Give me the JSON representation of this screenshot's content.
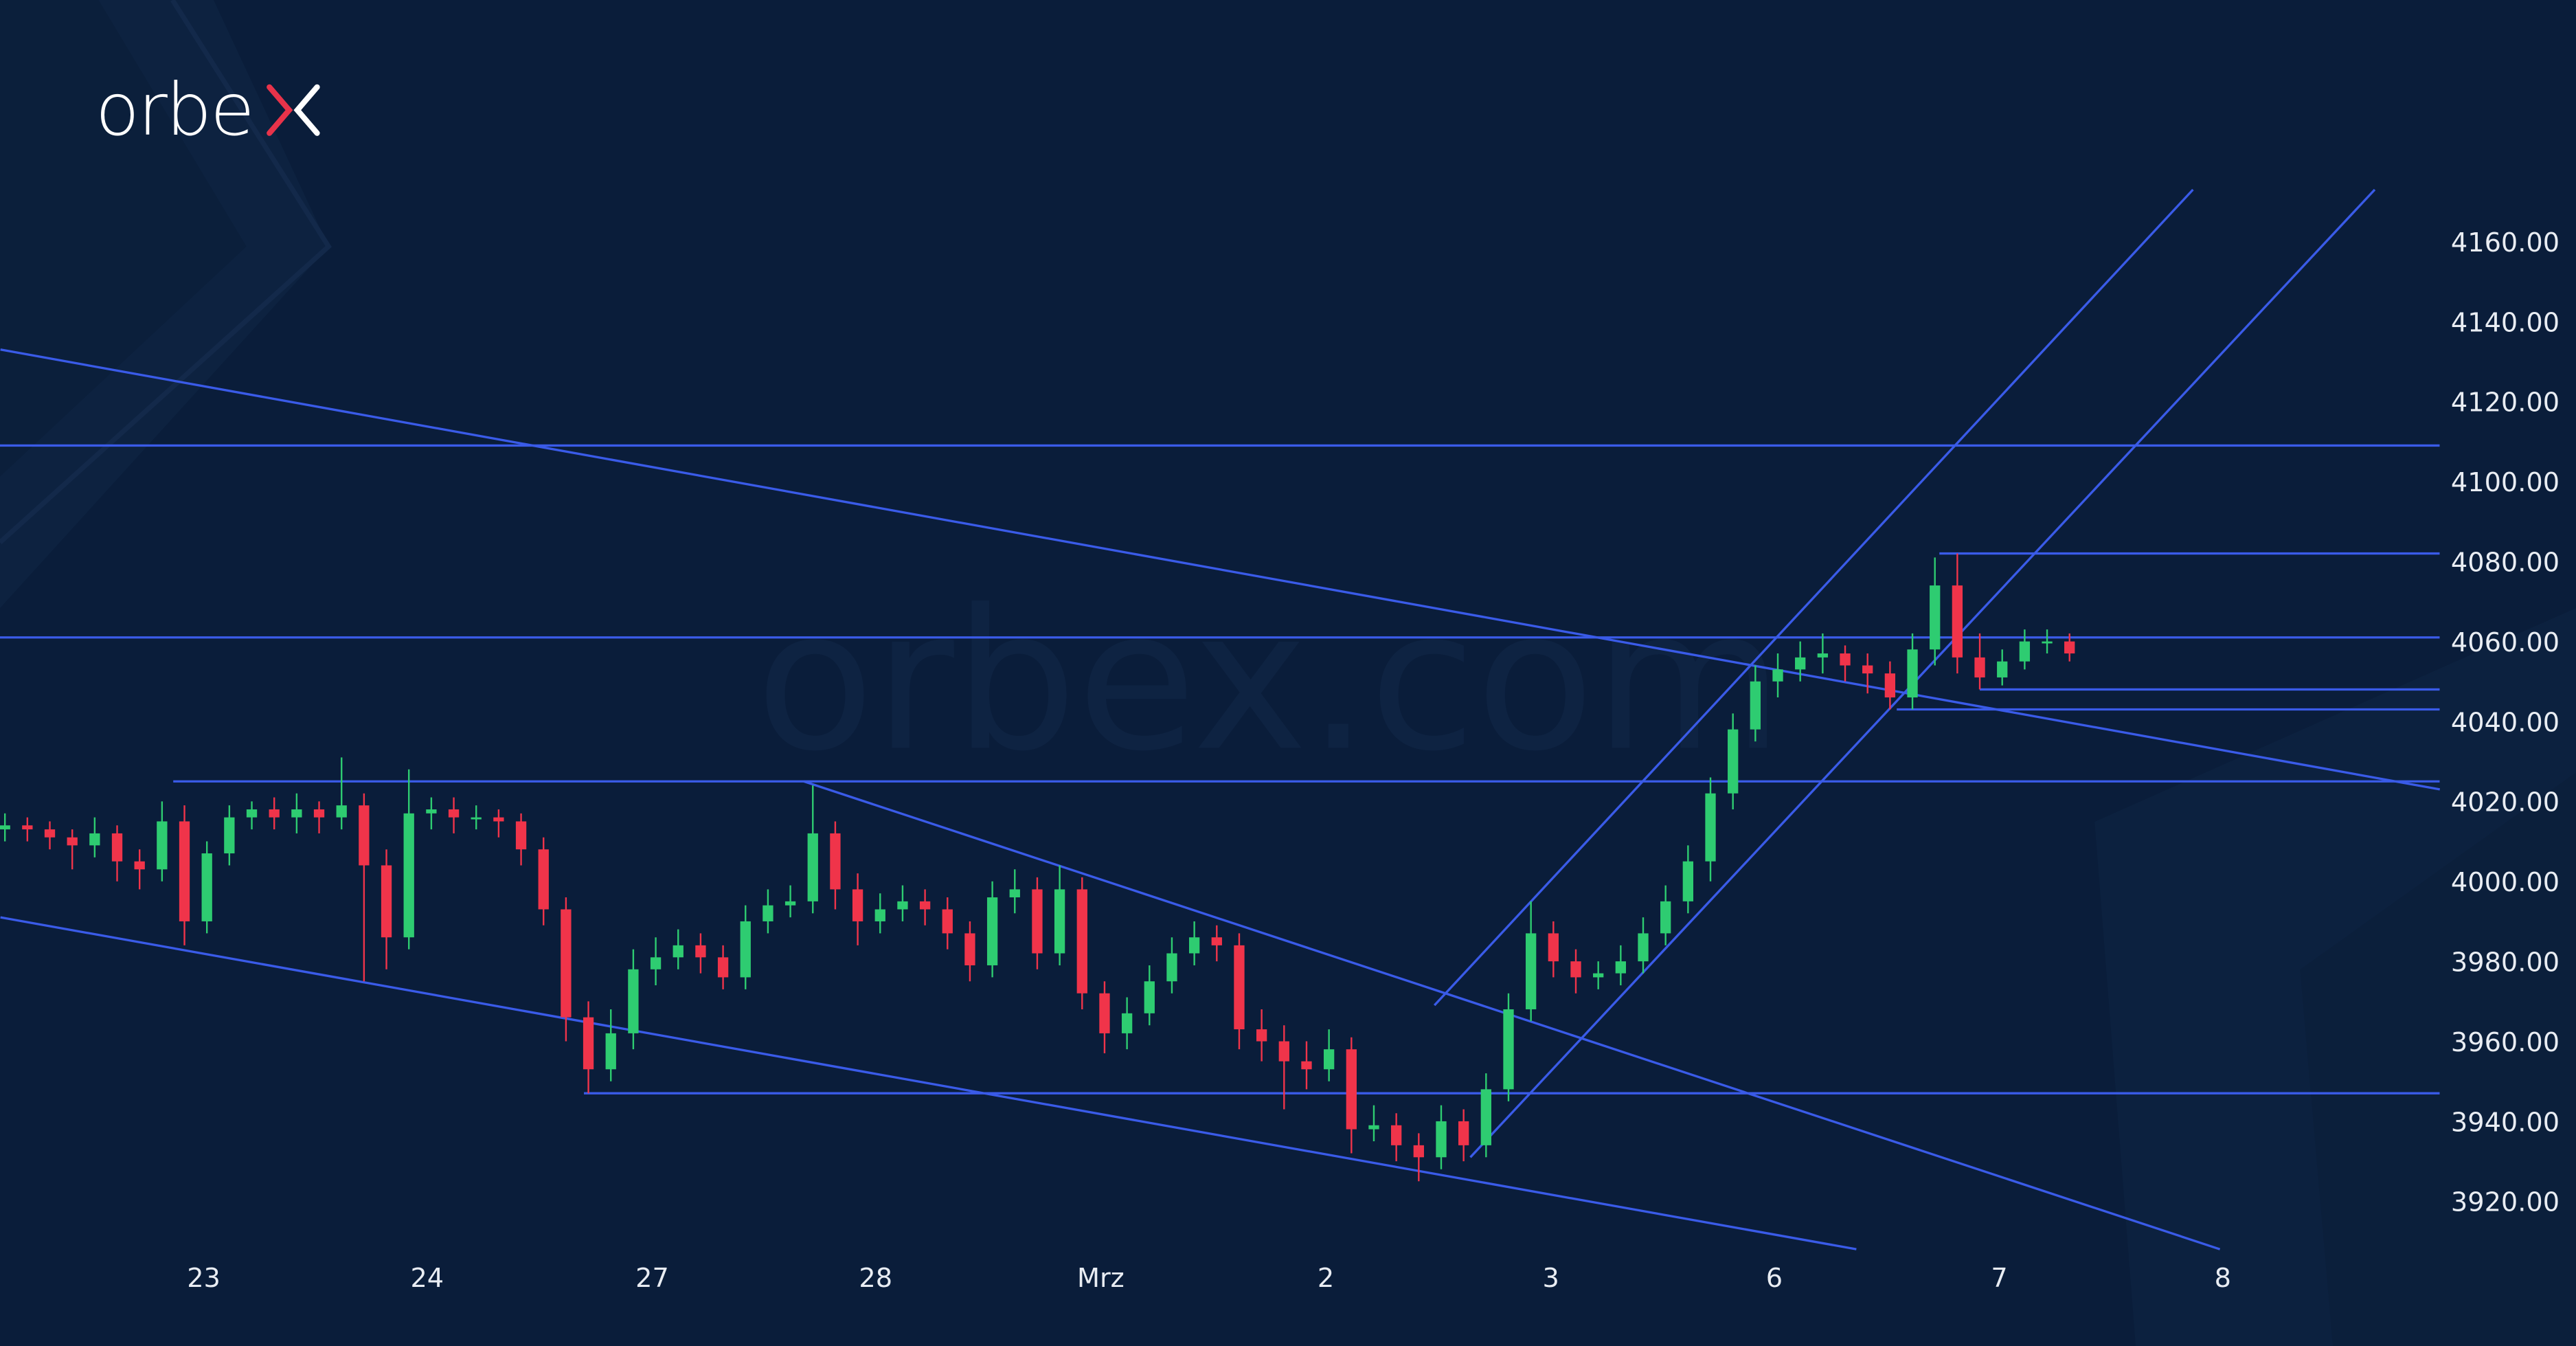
{
  "brand": {
    "logo_text": "orbex",
    "watermark_text": "orbex.com"
  },
  "colors": {
    "background": "#0a1d3a",
    "bull": "#2ecc71",
    "bear": "#f0344a",
    "drawing": "#3a5be8",
    "axis_text": "#e9edf3",
    "logo_accent": "#e8334a"
  },
  "chart_data": {
    "type": "candlestick",
    "title": "",
    "xlabel": "",
    "ylabel": "",
    "ylim": [
      3910,
      4175
    ],
    "grid": false,
    "y_ticks": [
      "4160.00",
      "4140.00",
      "4120.00",
      "4100.00",
      "4080.00",
      "4060.00",
      "4040.00",
      "4020.00",
      "4000.00",
      "3980.00",
      "3960.00",
      "3940.00",
      "3920.00"
    ],
    "x_ticks": [
      "23",
      "24",
      "27",
      "28",
      "Mrz",
      "2",
      "3",
      "6",
      "7",
      "8"
    ],
    "ohlc": [
      [
        4013,
        4017,
        4010,
        4014
      ],
      [
        4014,
        4016,
        4010,
        4013
      ],
      [
        4013,
        4015,
        4008,
        4011
      ],
      [
        4011,
        4013,
        4003,
        4009
      ],
      [
        4009,
        4016,
        4006,
        4012
      ],
      [
        4012,
        4014,
        4000,
        4005
      ],
      [
        4005,
        4008,
        3998,
        4003
      ],
      [
        4003,
        4020,
        4000,
        4015
      ],
      [
        4015,
        4019,
        3984,
        3990
      ],
      [
        3990,
        4010,
        3987,
        4007
      ],
      [
        4007,
        4019,
        4004,
        4016
      ],
      [
        4016,
        4020,
        4013,
        4018
      ],
      [
        4018,
        4021,
        4013,
        4016
      ],
      [
        4016,
        4022,
        4012,
        4018
      ],
      [
        4018,
        4020,
        4012,
        4016
      ],
      [
        4016,
        4031,
        4013,
        4019
      ],
      [
        4019,
        4022,
        3975,
        4004
      ],
      [
        4004,
        4008,
        3978,
        3986
      ],
      [
        3986,
        4028,
        3983,
        4017
      ],
      [
        4017,
        4021,
        4013,
        4018
      ],
      [
        4018,
        4021,
        4012,
        4016
      ],
      [
        4016,
        4019,
        4013,
        4016
      ],
      [
        4016,
        4018,
        4011,
        4015
      ],
      [
        4015,
        4017,
        4004,
        4008
      ],
      [
        4008,
        4011,
        3989,
        3993
      ],
      [
        3993,
        3996,
        3960,
        3966
      ],
      [
        3966,
        3970,
        3947,
        3953
      ],
      [
        3953,
        3968,
        3950,
        3962
      ],
      [
        3962,
        3983,
        3958,
        3978
      ],
      [
        3978,
        3986,
        3974,
        3981
      ],
      [
        3981,
        3988,
        3978,
        3984
      ],
      [
        3984,
        3987,
        3977,
        3981
      ],
      [
        3981,
        3984,
        3973,
        3976
      ],
      [
        3976,
        3994,
        3973,
        3990
      ],
      [
        3990,
        3998,
        3987,
        3994
      ],
      [
        3994,
        3999,
        3991,
        3995
      ],
      [
        3995,
        4024,
        3992,
        4012
      ],
      [
        4012,
        4015,
        3993,
        3998
      ],
      [
        3998,
        4002,
        3984,
        3990
      ],
      [
        3990,
        3997,
        3987,
        3993
      ],
      [
        3993,
        3999,
        3990,
        3995
      ],
      [
        3995,
        3998,
        3989,
        3993
      ],
      [
        3993,
        3996,
        3983,
        3987
      ],
      [
        3987,
        3990,
        3975,
        3979
      ],
      [
        3979,
        4000,
        3976,
        3996
      ],
      [
        3996,
        4003,
        3992,
        3998
      ],
      [
        3998,
        4001,
        3978,
        3982
      ],
      [
        3982,
        4004,
        3979,
        3998
      ],
      [
        3998,
        4001,
        3968,
        3972
      ],
      [
        3972,
        3975,
        3957,
        3962
      ],
      [
        3962,
        3971,
        3958,
        3967
      ],
      [
        3967,
        3979,
        3964,
        3975
      ],
      [
        3975,
        3986,
        3972,
        3982
      ],
      [
        3982,
        3990,
        3979,
        3986
      ],
      [
        3986,
        3989,
        3980,
        3984
      ],
      [
        3984,
        3987,
        3958,
        3963
      ],
      [
        3963,
        3968,
        3955,
        3960
      ],
      [
        3960,
        3964,
        3943,
        3955
      ],
      [
        3955,
        3960,
        3948,
        3953
      ],
      [
        3953,
        3963,
        3950,
        3958
      ],
      [
        3958,
        3961,
        3932,
        3938
      ],
      [
        3938,
        3944,
        3935,
        3939
      ],
      [
        3939,
        3942,
        3930,
        3934
      ],
      [
        3934,
        3937,
        3925,
        3931
      ],
      [
        3931,
        3944,
        3928,
        3940
      ],
      [
        3940,
        3943,
        3930,
        3934
      ],
      [
        3934,
        3952,
        3931,
        3948
      ],
      [
        3948,
        3972,
        3945,
        3968
      ],
      [
        3968,
        3995,
        3965,
        3987
      ],
      [
        3987,
        3990,
        3976,
        3980
      ],
      [
        3980,
        3983,
        3972,
        3976
      ],
      [
        3976,
        3980,
        3973,
        3977
      ],
      [
        3977,
        3984,
        3974,
        3980
      ],
      [
        3980,
        3991,
        3977,
        3987
      ],
      [
        3987,
        3999,
        3984,
        3995
      ],
      [
        3995,
        4009,
        3992,
        4005
      ],
      [
        4005,
        4026,
        4000,
        4022
      ],
      [
        4022,
        4042,
        4018,
        4038
      ],
      [
        4038,
        4054,
        4035,
        4050
      ],
      [
        4050,
        4057,
        4046,
        4053
      ],
      [
        4053,
        4060,
        4050,
        4056
      ],
      [
        4056,
        4062,
        4052,
        4057
      ],
      [
        4057,
        4059,
        4050,
        4054
      ],
      [
        4054,
        4057,
        4047,
        4052
      ],
      [
        4052,
        4055,
        4043,
        4046
      ],
      [
        4046,
        4062,
        4043,
        4058
      ],
      [
        4058,
        4081,
        4054,
        4074
      ],
      [
        4074,
        4082,
        4052,
        4056
      ],
      [
        4056,
        4062,
        4048,
        4051
      ],
      [
        4051,
        4058,
        4049,
        4055
      ],
      [
        4055,
        4063,
        4053,
        4060
      ],
      [
        4060,
        4063,
        4057,
        4060
      ],
      [
        4060,
        4062,
        4055,
        4057
      ]
    ],
    "horizontal_levels": [
      {
        "price": 4109,
        "from_bar": -1
      },
      {
        "price": 4061,
        "from_bar": -1
      },
      {
        "price": 4025,
        "from_bar": 7.5
      },
      {
        "price": 3947,
        "from_bar": 25.8
      },
      {
        "price": 4082,
        "from_bar": 86.2
      },
      {
        "price": 4048,
        "from_bar": 88.0
      },
      {
        "price": 4043,
        "from_bar": 84.3
      }
    ],
    "trendlines": [
      {
        "from": [
          -0.2,
          4133
        ],
        "to": [
          108.5,
          4023
        ]
      },
      {
        "from": [
          -0.2,
          3991
        ],
        "to": [
          82.5,
          3908
        ]
      },
      {
        "from": [
          35.6,
          4025
        ],
        "to": [
          98.7,
          3908
        ]
      },
      {
        "from": [
          63.7,
          3969
        ],
        "to": [
          97.5,
          4173
        ]
      },
      {
        "from": [
          65.3,
          3931
        ],
        "to": [
          105.6,
          4173
        ]
      }
    ]
  }
}
